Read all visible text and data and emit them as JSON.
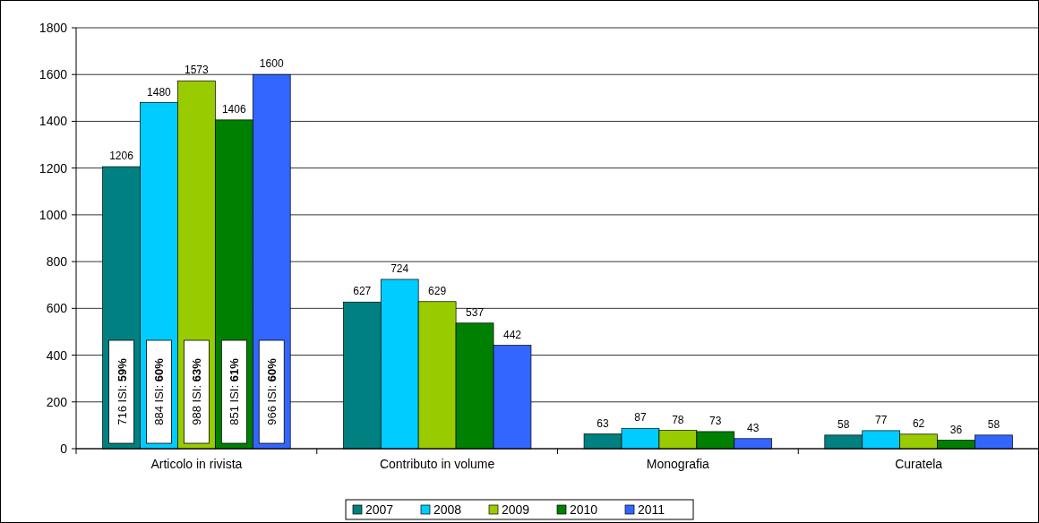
{
  "chart_data": {
    "type": "bar",
    "categories": [
      "Articolo in rivista",
      "Contributo in volume",
      "Monografia",
      "Curatela"
    ],
    "series": [
      {
        "name": "2007",
        "color": "#008080",
        "values": [
          1206,
          627,
          63,
          58
        ]
      },
      {
        "name": "2008",
        "color": "#00ccff",
        "values": [
          1480,
          724,
          87,
          77
        ]
      },
      {
        "name": "2009",
        "color": "#99cc00",
        "values": [
          1573,
          629,
          78,
          62
        ]
      },
      {
        "name": "2010",
        "color": "#008000",
        "values": [
          1406,
          537,
          73,
          36
        ]
      },
      {
        "name": "2011",
        "color": "#3366ff",
        "values": [
          1600,
          442,
          43,
          58
        ]
      }
    ],
    "ylim": [
      0,
      1800
    ],
    "yticks": [
      0,
      200,
      400,
      600,
      800,
      1000,
      1200,
      1400,
      1600,
      1800
    ],
    "grid": "y",
    "legend": "bottom",
    "data_labels": true,
    "annotations": [
      "716 ISI: 59%",
      "884 ISI: 60%",
      "988 ISI: 63%",
      "851 ISI: 61%",
      "966 ISI: 60%"
    ]
  }
}
